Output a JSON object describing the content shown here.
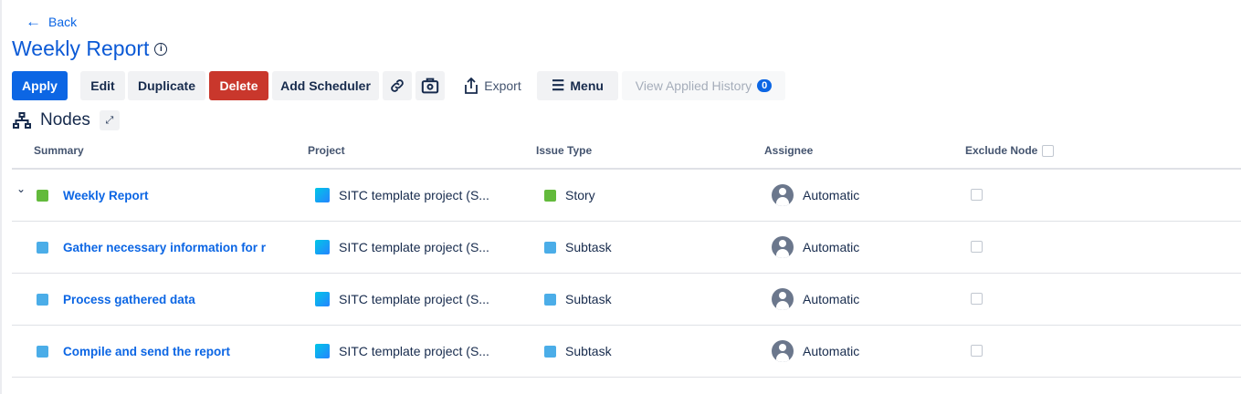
{
  "back_label": "Back",
  "title": "Weekly Report",
  "toolbar": {
    "apply": "Apply",
    "edit": "Edit",
    "duplicate": "Duplicate",
    "delete": "Delete",
    "add_scheduler": "Add Scheduler",
    "export": "Export",
    "menu": "Menu",
    "view_history": "View Applied History",
    "history_count": "0"
  },
  "section_title": "Nodes",
  "columns": {
    "summary": "Summary",
    "project": "Project",
    "issue_type": "Issue Type",
    "assignee": "Assignee",
    "exclude": "Exclude Node"
  },
  "rows": [
    {
      "summary": "Weekly Report",
      "project": "SITC template project (S...",
      "type": "Story",
      "assignee": "Automatic"
    },
    {
      "summary": "Gather necessary information for report",
      "project": "SITC template project (S...",
      "type": "Subtask",
      "assignee": "Automatic"
    },
    {
      "summary": "Process gathered data",
      "project": "SITC template project (S...",
      "type": "Subtask",
      "assignee": "Automatic"
    },
    {
      "summary": "Compile and send the report",
      "project": "SITC template project (S...",
      "type": "Subtask",
      "assignee": "Automatic"
    }
  ],
  "colors": {
    "primary": "#0c66e4",
    "danger": "#c9372c",
    "story": "#63ba3c",
    "subtask": "#4bade8"
  }
}
